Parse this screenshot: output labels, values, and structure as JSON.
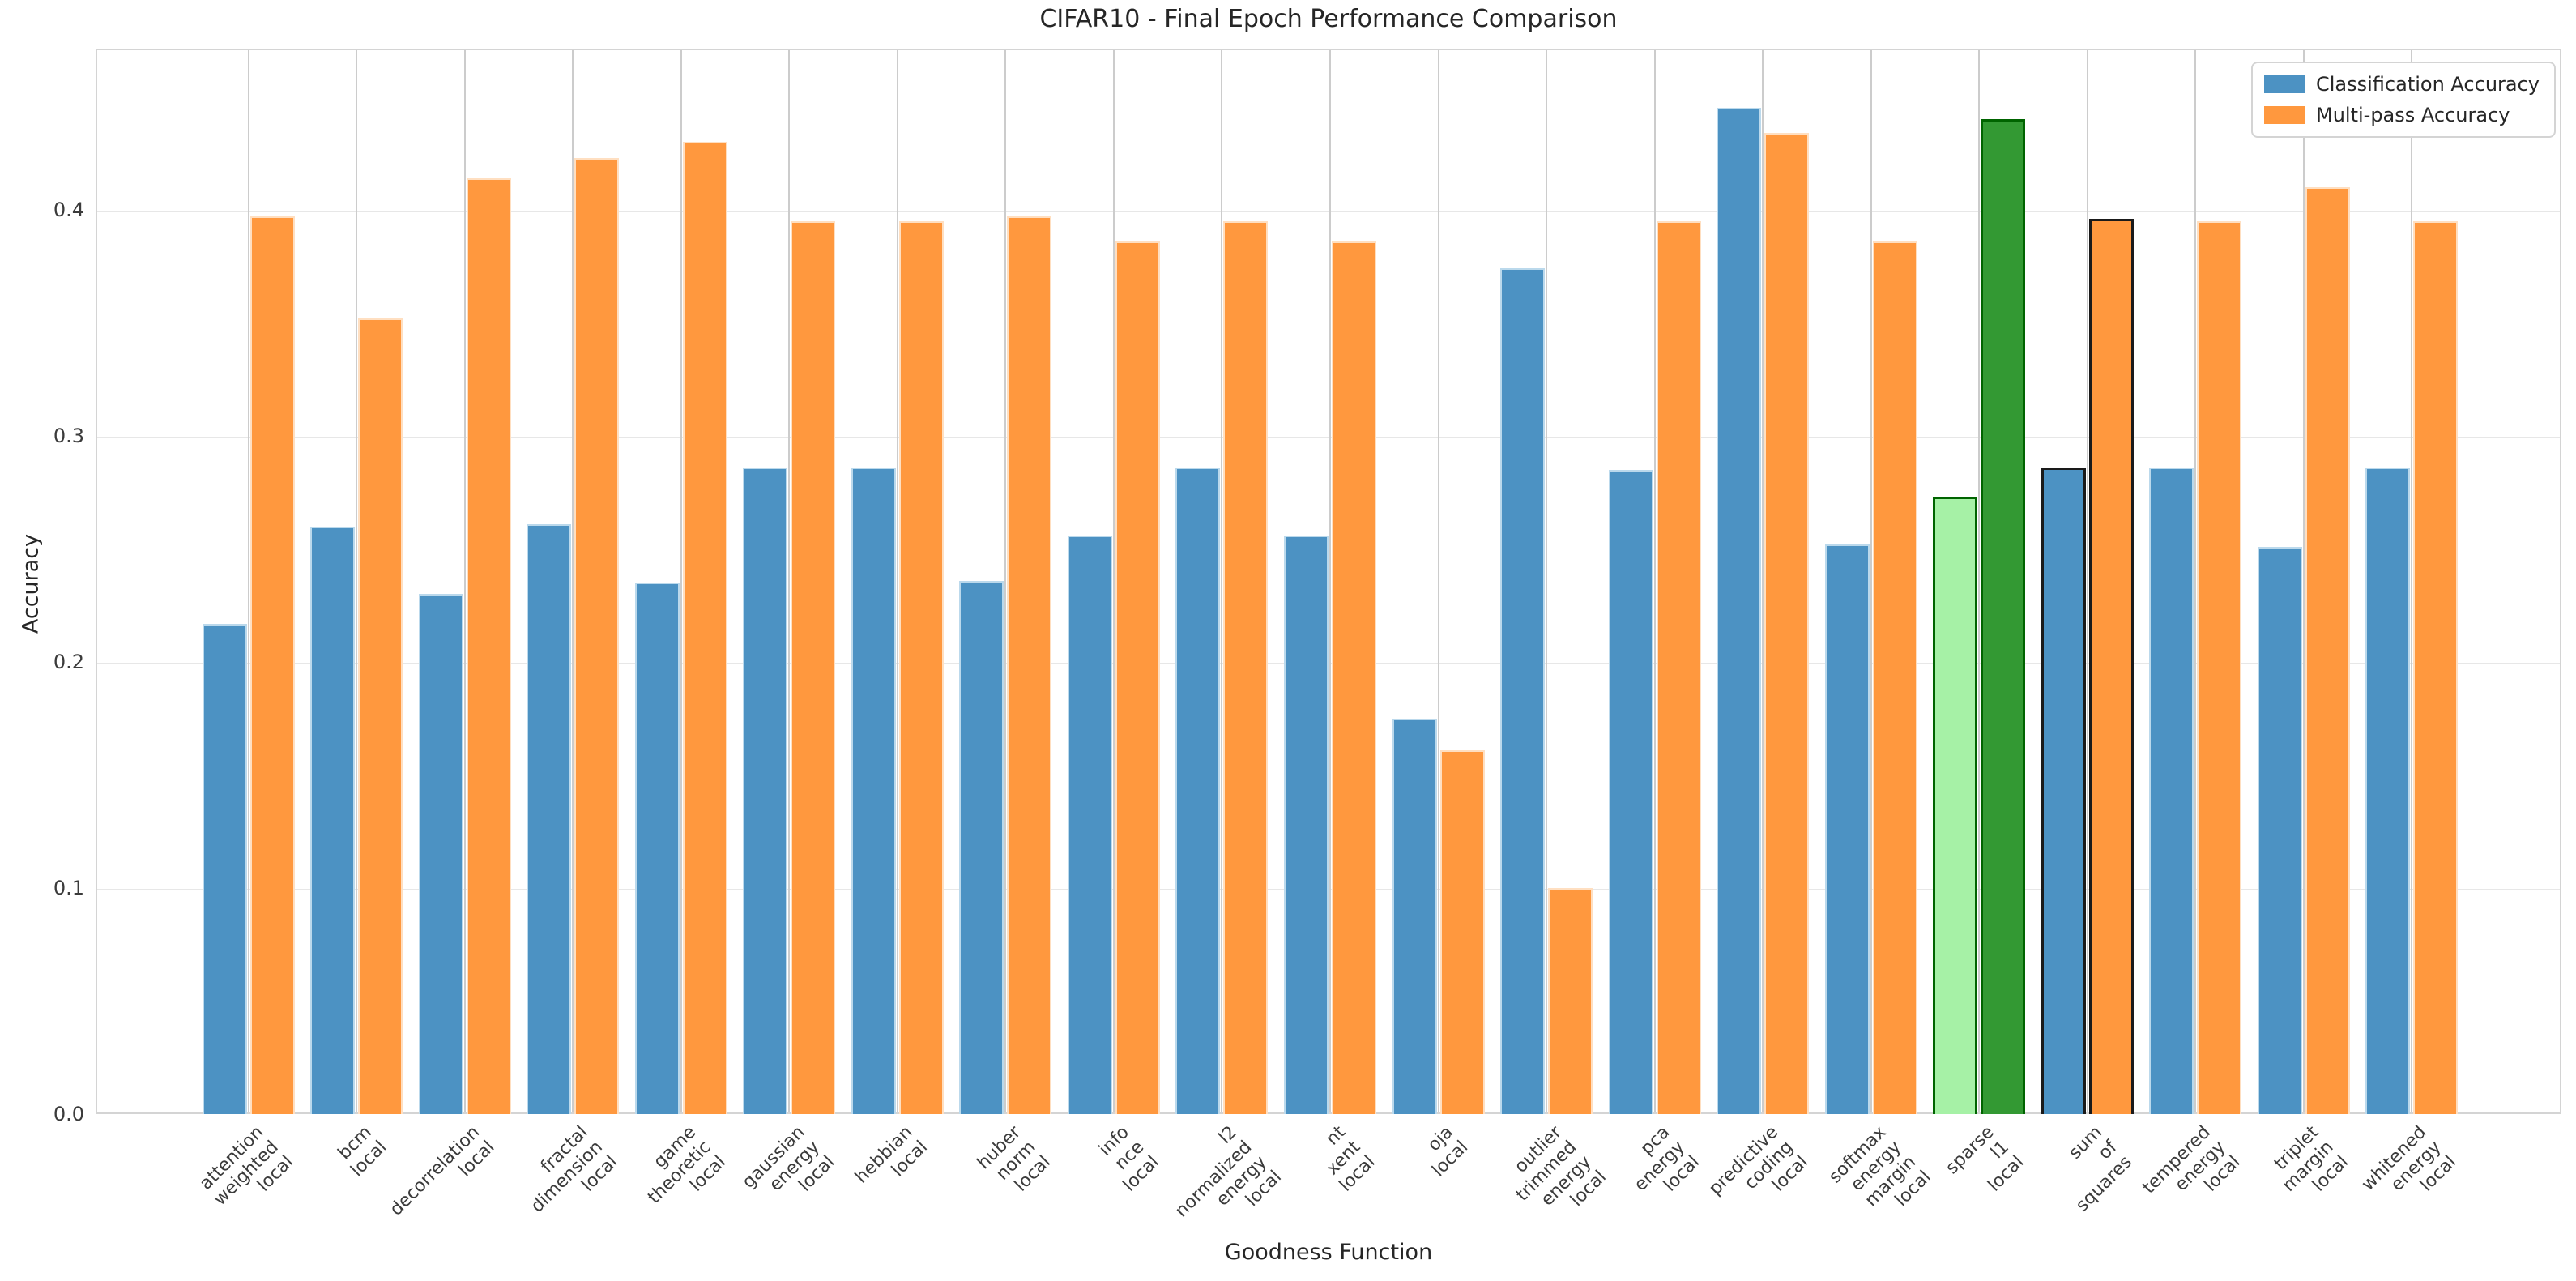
{
  "page": {
    "title": "CIFAR10 - Final Epoch Performance Comparison"
  },
  "chart_data": {
    "type": "bar",
    "title": "CIFAR10 - Final Epoch Performance Comparison",
    "xlabel": "Goodness Function",
    "ylabel": "Accuracy",
    "ylim": [
      0,
      0.4713
    ],
    "yticks": [
      0.0,
      0.1,
      0.2,
      0.3,
      0.4
    ],
    "ytick_labels": [
      "0.0",
      "0.1",
      "0.2",
      "0.3",
      "0.4"
    ],
    "grid": true,
    "legend_position": "upper right",
    "categories": [
      "attention weighted local",
      "bcm local",
      "decorrelation local",
      "fractal dimension local",
      "game theoretic local",
      "gaussian energy local",
      "hebbian local",
      "huber norm local",
      "info nce local",
      "l2 normalized energy local",
      "nt xent local",
      "oja local",
      "outlier trimmed energy local",
      "pca energy local",
      "predictive coding local",
      "softmax energy margin local",
      "sparse l1 local",
      "sum of squares",
      "tempered energy local",
      "triplet margin local",
      "whitened energy local"
    ],
    "series": [
      {
        "name": "Classification Accuracy",
        "color": "#4C92C3",
        "edge_color": "#BBD9EC",
        "values": [
          0.217,
          0.26,
          0.23,
          0.261,
          0.235,
          0.286,
          0.286,
          0.236,
          0.256,
          0.286,
          0.256,
          0.175,
          0.374,
          0.285,
          0.445,
          0.252,
          0.273,
          0.286,
          0.286,
          0.251,
          0.286
        ]
      },
      {
        "name": "Multi-pass Accuracy",
        "color": "#FF983E",
        "edge_color": "#FFDFC1",
        "values": [
          0.397,
          0.352,
          0.414,
          0.423,
          0.43,
          0.395,
          0.395,
          0.397,
          0.386,
          0.395,
          0.386,
          0.161,
          0.1,
          0.395,
          0.434,
          0.386,
          0.44,
          0.396,
          0.395,
          0.41,
          0.395
        ]
      }
    ],
    "highlight_bars": [
      {
        "category": "sparse l1 local",
        "category_index": 16,
        "series0_fill": "#A6F1A6",
        "series1_fill": "#339933",
        "edge": "#006400",
        "edge_width": 3
      },
      {
        "category": "sum of squares",
        "category_index": 17,
        "series0_fill": "#4C92C3",
        "series1_fill": "#FF983E",
        "edge": "#1A1A1A",
        "edge_width": 3
      }
    ]
  },
  "legend": {
    "items": [
      {
        "label": "Classification Accuracy",
        "color": "#4C92C3"
      },
      {
        "label": "Multi-pass Accuracy",
        "color": "#FF983E"
      }
    ]
  }
}
